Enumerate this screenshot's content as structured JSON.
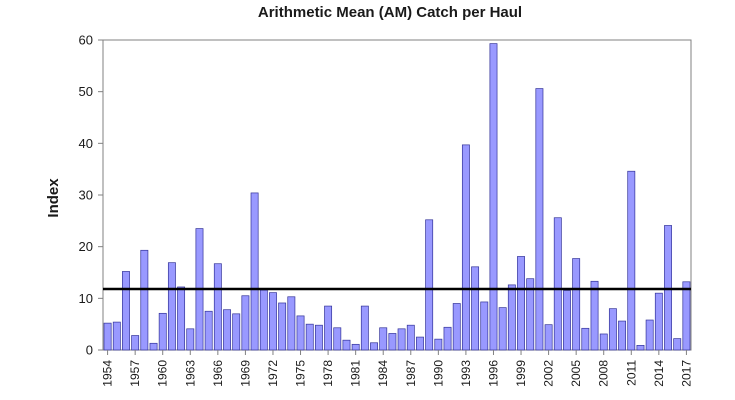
{
  "chart_data": {
    "type": "bar",
    "title": "Arithmetic Mean (AM) Catch per Haul",
    "xlabel": "",
    "ylabel": "Index",
    "ylim": [
      0,
      60
    ],
    "yticks": [
      "0",
      "10",
      "20",
      "30",
      "40",
      "50",
      "60"
    ],
    "grid": false,
    "categories": [
      "1954",
      "1955",
      "1956",
      "1957",
      "1958",
      "1959",
      "1960",
      "1961",
      "1962",
      "1963",
      "1964",
      "1965",
      "1966",
      "1967",
      "1968",
      "1969",
      "1970",
      "1971",
      "1972",
      "1973",
      "1974",
      "1975",
      "1976",
      "1977",
      "1978",
      "1979",
      "1980",
      "1981",
      "1982",
      "1983",
      "1984",
      "1985",
      "1986",
      "1987",
      "1988",
      "1989",
      "1990",
      "1991",
      "1992",
      "1993",
      "1994",
      "1995",
      "1996",
      "1997",
      "1998",
      "1999",
      "2000",
      "2001",
      "2002",
      "2003",
      "2004",
      "2005",
      "2006",
      "2007",
      "2008",
      "2009",
      "2010",
      "2011",
      "2012",
      "2013",
      "2014",
      "2015",
      "2016",
      "2017"
    ],
    "xtick_labels": [
      "1954",
      "1957",
      "1960",
      "1963",
      "1966",
      "1969",
      "1972",
      "1975",
      "1978",
      "1981",
      "1984",
      "1987",
      "1990",
      "1993",
      "1996",
      "1999",
      "2002",
      "2005",
      "2008",
      "2011",
      "2014",
      "2017"
    ],
    "series": [
      {
        "values": [
          5.2,
          5.4,
          15.2,
          2.8,
          19.3,
          1.3,
          7.1,
          16.9,
          12.2,
          4.1,
          23.5,
          7.5,
          16.7,
          7.8,
          7.0,
          10.5,
          30.4,
          11.6,
          11.1,
          9.1,
          10.3,
          6.6,
          5.0,
          4.8,
          8.5,
          4.3,
          1.9,
          1.1,
          8.5,
          1.4,
          4.3,
          3.2,
          4.1,
          4.8,
          2.5,
          25.2,
          2.1,
          4.4,
          9.0,
          39.7,
          16.1,
          9.3,
          59.3,
          8.2,
          12.6,
          18.1,
          13.8,
          50.6,
          4.9,
          25.6,
          11.5,
          17.7,
          4.2,
          13.3,
          3.1,
          8.0,
          5.6,
          34.6,
          0.9,
          5.8,
          11.0,
          24.1,
          2.2,
          13.2
        ]
      }
    ],
    "reference_line": {
      "value": 11.8,
      "color": "#000000"
    },
    "colors": {
      "bar_fill": "#9999ff",
      "bar_stroke": "#333399"
    }
  }
}
